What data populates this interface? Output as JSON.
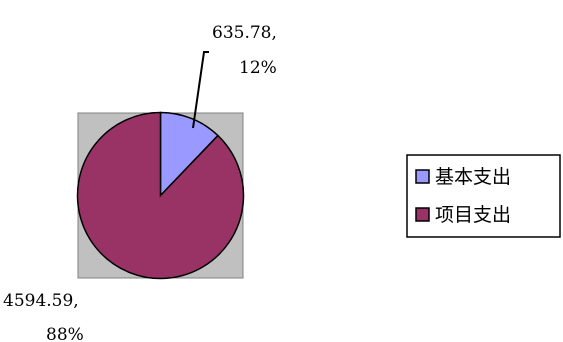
{
  "chart_data": {
    "type": "pie",
    "title": "",
    "start_angle_deg": 0,
    "direction": "clockwise",
    "legend_position": "right",
    "plot_area_color": "#c0c0c0",
    "series": [
      {
        "values": [
          635.78,
          4594.59
        ],
        "categories": [
          "基本支出",
          "项目支出"
        ],
        "colors": [
          "#9999ff",
          "#993366"
        ],
        "data_labels": [
          {
            "value_text": "635.78,",
            "percent_text": "12%"
          },
          {
            "value_text": "4594.59,",
            "percent_text": "88%"
          }
        ]
      }
    ]
  }
}
